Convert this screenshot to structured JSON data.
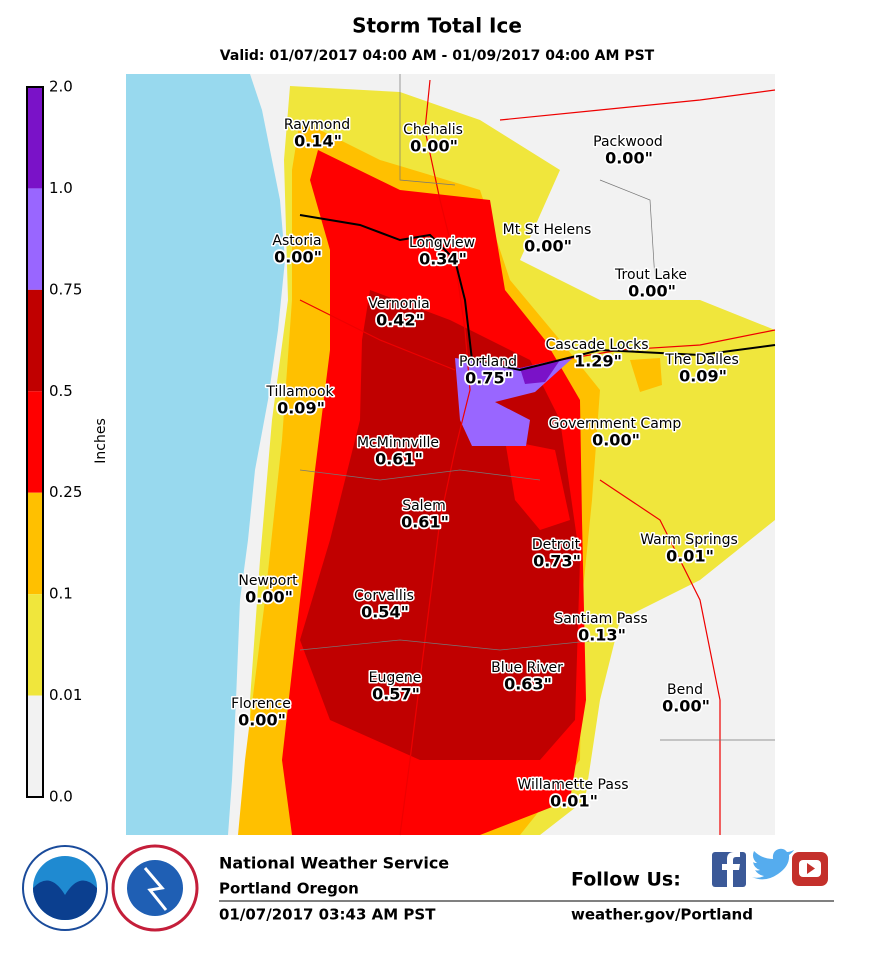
{
  "header": {
    "title": "Storm Total Ice",
    "subtitle": "Valid: 01/07/2017 04:00 AM - 01/09/2017 04:00 AM PST"
  },
  "legend": {
    "title": "Inches",
    "ticks": [
      "2.0",
      "1.0",
      "0.75",
      "0.5",
      "0.25",
      "0.1",
      "0.01",
      "0.0"
    ],
    "colors": [
      "#7a12c8",
      "#9966ff",
      "#c00000",
      "#ff0000",
      "#ffc000",
      "#f0e63c",
      "#f2f2f2"
    ]
  },
  "cities": [
    {
      "name": "Raymond",
      "value": "0.14\""
    },
    {
      "name": "Chehalis",
      "value": "0.00\""
    },
    {
      "name": "Packwood",
      "value": "0.00\""
    },
    {
      "name": "Astoria",
      "value": "0.00\""
    },
    {
      "name": "Longview",
      "value": "0.34\""
    },
    {
      "name": "Mt St Helens",
      "value": "0.00\""
    },
    {
      "name": "Trout Lake",
      "value": "0.00\""
    },
    {
      "name": "Vernonia",
      "value": "0.42\""
    },
    {
      "name": "Portland",
      "value": "0.75\""
    },
    {
      "name": "Cascade Locks",
      "value": "1.29\""
    },
    {
      "name": "The Dalles",
      "value": "0.09\""
    },
    {
      "name": "Tillamook",
      "value": "0.09\""
    },
    {
      "name": "Government Camp",
      "value": "0.00\""
    },
    {
      "name": "McMinnville",
      "value": "0.61\""
    },
    {
      "name": "Salem",
      "value": "0.61\""
    },
    {
      "name": "Detroit",
      "value": "0.73\""
    },
    {
      "name": "Warm Springs",
      "value": "0.01\""
    },
    {
      "name": "Newport",
      "value": "0.00\""
    },
    {
      "name": "Corvallis",
      "value": "0.54\""
    },
    {
      "name": "Santiam Pass",
      "value": "0.13\""
    },
    {
      "name": "Blue River",
      "value": "0.63\""
    },
    {
      "name": "Eugene",
      "value": "0.57\""
    },
    {
      "name": "Bend",
      "value": "0.00\""
    },
    {
      "name": "Florence",
      "value": "0.00\""
    },
    {
      "name": "Willamette Pass",
      "value": "0.01\""
    }
  ],
  "footer": {
    "agency": "National Weather Service",
    "office": "Portland Oregon",
    "issued": "01/07/2017 03:43 AM PST",
    "follow": "Follow Us:",
    "url": "weather.gov/Portland"
  }
}
